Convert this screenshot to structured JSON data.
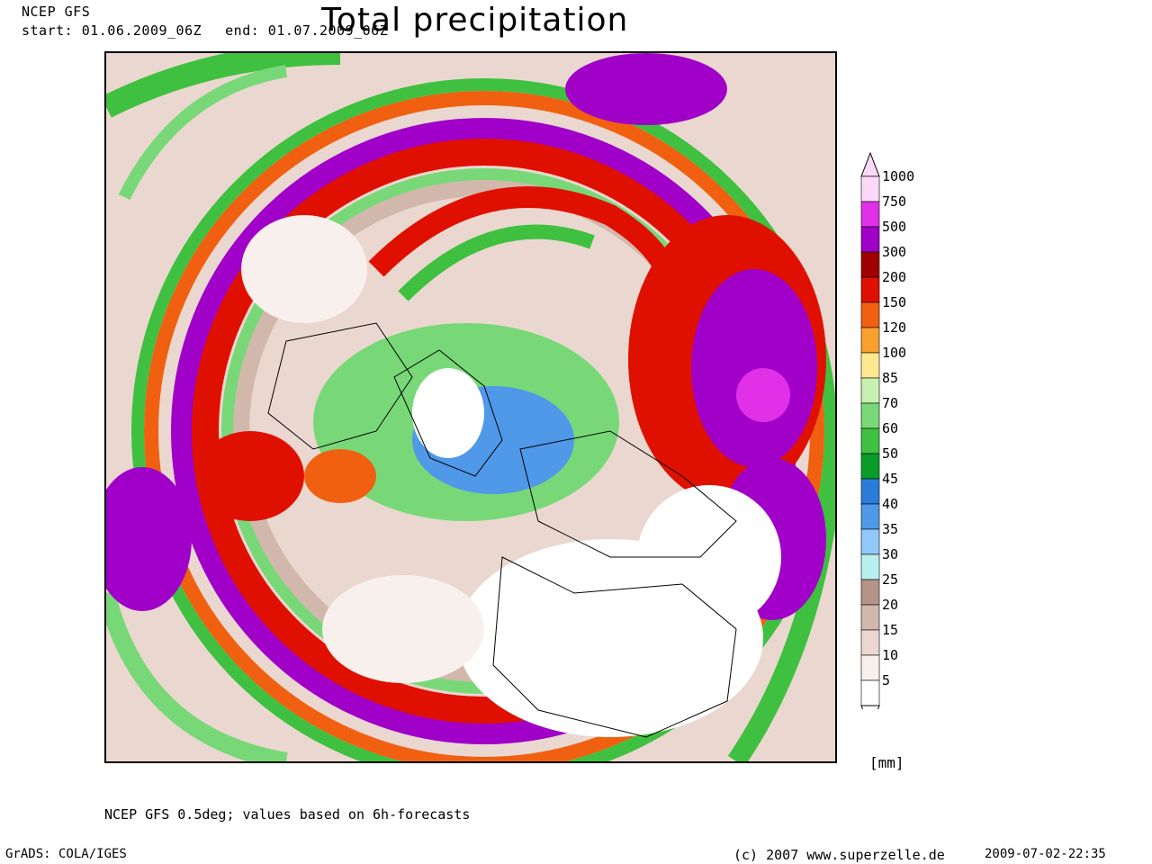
{
  "header": {
    "model": "NCEP GFS",
    "start": "start: 01.06.2009_06Z",
    "end": "end: 01.07.2009_06Z",
    "title": "Total precipitation"
  },
  "colorbar": {
    "units": "[mm]",
    "levels": [
      {
        "label": "1000",
        "color": "#fcd8f8"
      },
      {
        "label": "750",
        "color": "#e030e8"
      },
      {
        "label": "500",
        "color": "#a000c8"
      },
      {
        "label": "300",
        "color": "#a00000"
      },
      {
        "label": "200",
        "color": "#e01000"
      },
      {
        "label": "150",
        "color": "#f06010"
      },
      {
        "label": "120",
        "color": "#f8a030"
      },
      {
        "label": "100",
        "color": "#ffe890"
      },
      {
        "label": "85",
        "color": "#c8f0b0"
      },
      {
        "label": "70",
        "color": "#78d878"
      },
      {
        "label": "60",
        "color": "#40c040"
      },
      {
        "label": "50",
        "color": "#0a9c28"
      },
      {
        "label": "45",
        "color": "#2a7cd8"
      },
      {
        "label": "40",
        "color": "#5098e8"
      },
      {
        "label": "35",
        "color": "#90c8f8"
      },
      {
        "label": "30",
        "color": "#b8f0f0"
      },
      {
        "label": "25",
        "color": "#b49488"
      },
      {
        "label": "20",
        "color": "#d2b8ac"
      },
      {
        "label": "15",
        "color": "#ead8d0"
      },
      {
        "label": "10",
        "color": "#f8f0ec"
      },
      {
        "label": "5",
        "color": "#ffffff"
      }
    ]
  },
  "footer": {
    "note": "NCEP GFS 0.5deg; values based on 6h-forecasts",
    "software": "GrADS: COLA/IGES",
    "copyright": "(c) 2007 www.superzelle.de",
    "timestamp": "2009-07-02-22:35"
  }
}
